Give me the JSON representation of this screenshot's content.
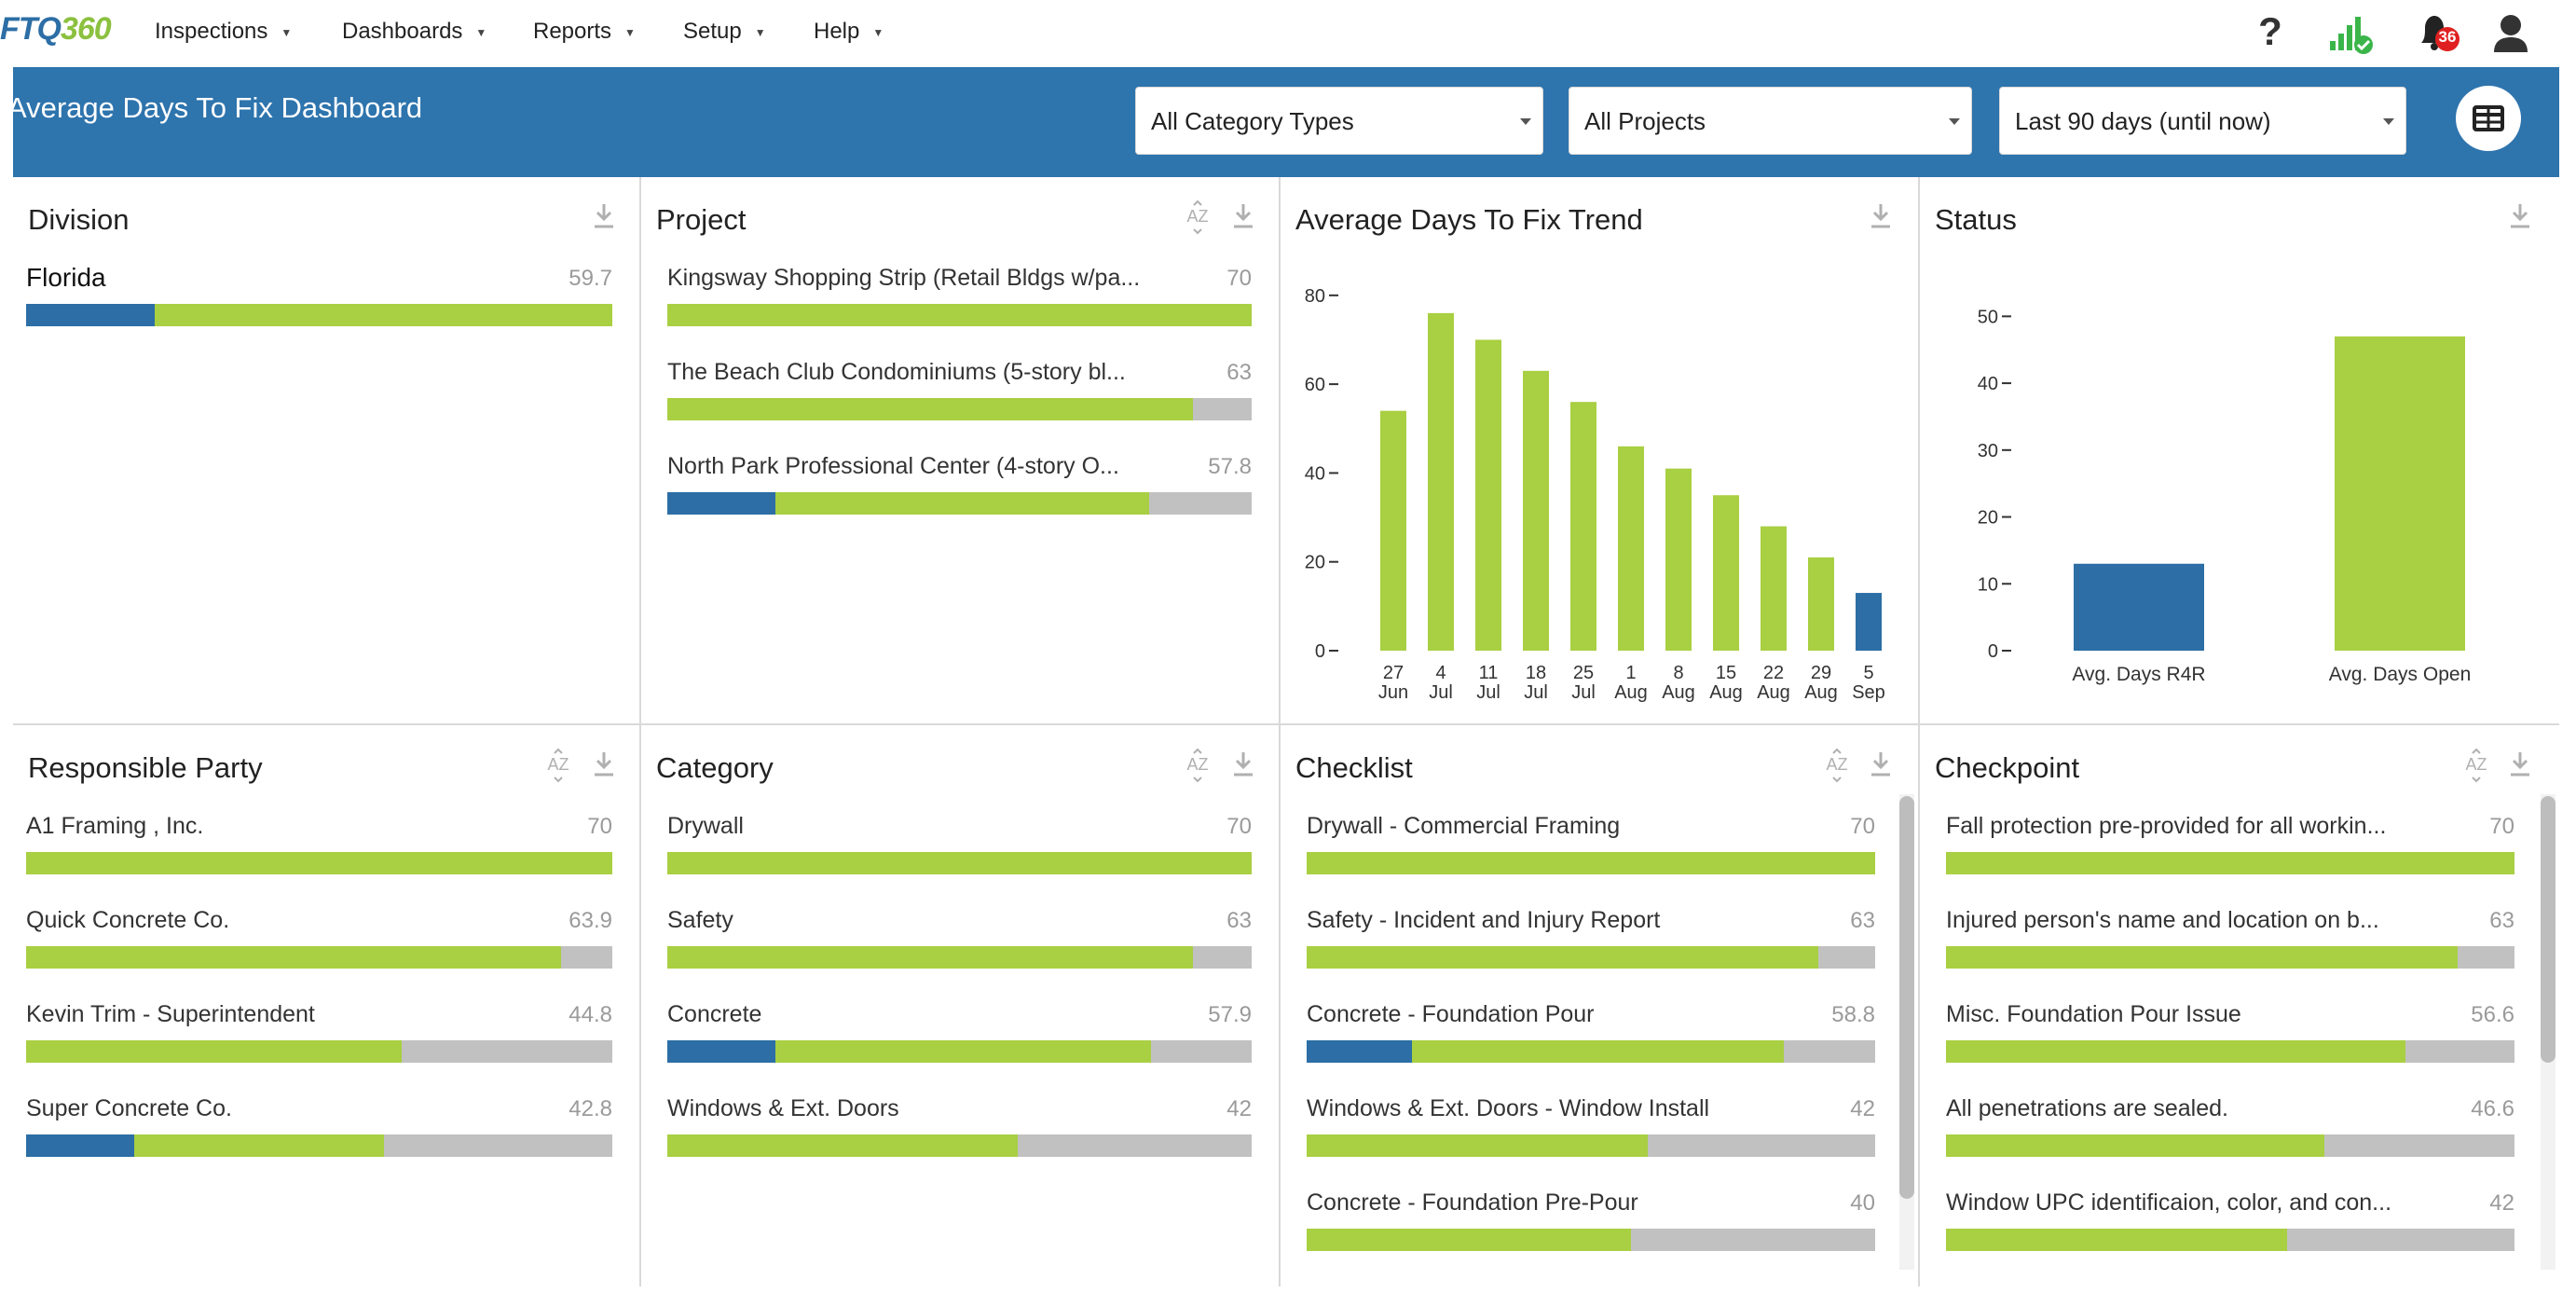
{
  "app": {
    "logo": {
      "part1": "FTQ",
      "part2": "360"
    },
    "nav": [
      {
        "label": "Inspections"
      },
      {
        "label": "Dashboards"
      },
      {
        "label": "Reports"
      },
      {
        "label": "Setup"
      },
      {
        "label": "Help"
      }
    ],
    "notifications_count": "36"
  },
  "header": {
    "title": "Average Days To Fix Dashboard",
    "filters": {
      "category_types": "All Category Types",
      "projects": "All Projects",
      "date_range": "Last 90 days (until now)"
    }
  },
  "colors": {
    "blue": "#2c6ea5",
    "green": "#a9cf42",
    "gray": "#c1c1c1",
    "band": "#2e74ad"
  },
  "panels": {
    "division": {
      "title": "Division",
      "rows": [
        {
          "label": "Florida",
          "value": "59.7",
          "blue": 0.22,
          "green": 1.0
        }
      ]
    },
    "project": {
      "title": "Project",
      "rows": [
        {
          "label": "Kingsway Shopping Strip (Retail Bldgs w/pa...",
          "value": "70",
          "blue": 0,
          "green": 1.0
        },
        {
          "label": "The Beach Club Condominiums (5-story bl...",
          "value": "63",
          "blue": 0,
          "green": 0.9
        },
        {
          "label": "North Park Professional Center (4-story O...",
          "value": "57.8",
          "blue": 0.185,
          "green": 0.825
        }
      ]
    },
    "responsible_party": {
      "title": "Responsible Party",
      "rows": [
        {
          "label": "A1 Framing , Inc.",
          "value": "70",
          "blue": 0,
          "green": 1.0
        },
        {
          "label": "Quick Concrete Co.",
          "value": "63.9",
          "blue": 0,
          "green": 0.913
        },
        {
          "label": "Kevin Trim - Superintendent",
          "value": "44.8",
          "blue": 0,
          "green": 0.64
        },
        {
          "label": "Super Concrete Co.",
          "value": "42.8",
          "blue": 0.185,
          "green": 0.611
        }
      ]
    },
    "category": {
      "title": "Category",
      "rows": [
        {
          "label": "Drywall",
          "value": "70",
          "blue": 0,
          "green": 1.0
        },
        {
          "label": "Safety",
          "value": "63",
          "blue": 0,
          "green": 0.9
        },
        {
          "label": "Concrete",
          "value": "57.9",
          "blue": 0.185,
          "green": 0.827
        },
        {
          "label": "Windows & Ext. Doors",
          "value": "42",
          "blue": 0,
          "green": 0.6
        }
      ]
    },
    "checklist": {
      "title": "Checklist",
      "rows": [
        {
          "label": "Drywall - Commercial Framing",
          "value": "70",
          "blue": 0,
          "green": 1.0
        },
        {
          "label": "Safety - Incident and Injury Report",
          "value": "63",
          "blue": 0,
          "green": 0.9
        },
        {
          "label": "Concrete - Foundation Pour",
          "value": "58.8",
          "blue": 0.185,
          "green": 0.84
        },
        {
          "label": "Windows & Ext. Doors - Window Install",
          "value": "42",
          "blue": 0,
          "green": 0.6
        },
        {
          "label": "Concrete - Foundation Pre-Pour",
          "value": "40",
          "blue": 0,
          "green": 0.571
        }
      ]
    },
    "checkpoint": {
      "title": "Checkpoint",
      "rows": [
        {
          "label": "Fall protection pre-provided for all workin...",
          "value": "70",
          "blue": 0,
          "green": 1.0
        },
        {
          "label": "Injured person's name and location on b...",
          "value": "63",
          "blue": 0,
          "green": 0.9
        },
        {
          "label": "Misc. Foundation Pour Issue",
          "value": "56.6",
          "blue": 0,
          "green": 0.809
        },
        {
          "label": "All penetrations are sealed.",
          "value": "46.6",
          "blue": 0,
          "green": 0.666
        },
        {
          "label": "Window UPC identificaion, color, and con...",
          "value": "42",
          "blue": 0,
          "green": 0.6
        }
      ]
    },
    "trend": {
      "title": "Average Days To Fix Trend"
    },
    "status": {
      "title": "Status"
    }
  },
  "chart_data": [
    {
      "type": "bar",
      "title": "Average Days To Fix Trend",
      "categories": [
        "27 Jun",
        "4 Jul",
        "11 Jul",
        "18 Jul",
        "25 Jul",
        "1 Aug",
        "8 Aug",
        "15 Aug",
        "22 Aug",
        "29 Aug",
        "5 Sep"
      ],
      "tick_top": [
        "27",
        "4",
        "11",
        "18",
        "25",
        "1",
        "8",
        "15",
        "22",
        "29",
        "5"
      ],
      "tick_bottom": [
        "Jun",
        "Jul",
        "Jul",
        "Jul",
        "Jul",
        "Aug",
        "Aug",
        "Aug",
        "Aug",
        "Aug",
        "Sep"
      ],
      "values": [
        54,
        76,
        70,
        63,
        56,
        46,
        41,
        35,
        28,
        21,
        13
      ],
      "bar_colors": [
        "#a9cf42",
        "#a9cf42",
        "#a9cf42",
        "#a9cf42",
        "#a9cf42",
        "#a9cf42",
        "#a9cf42",
        "#a9cf42",
        "#a9cf42",
        "#a9cf42",
        "#2c6ea5"
      ],
      "ylim": [
        0,
        85
      ],
      "yticks": [
        0,
        20,
        40,
        60,
        80
      ],
      "grid": false
    },
    {
      "type": "bar",
      "title": "Status",
      "categories": [
        "Avg. Days R4R",
        "Avg. Days Open"
      ],
      "values": [
        13,
        47
      ],
      "bar_colors": [
        "#2c6ea5",
        "#a9cf42"
      ],
      "ylim": [
        0,
        52
      ],
      "yticks": [
        0,
        10,
        20,
        30,
        40,
        50
      ],
      "grid": false
    }
  ]
}
